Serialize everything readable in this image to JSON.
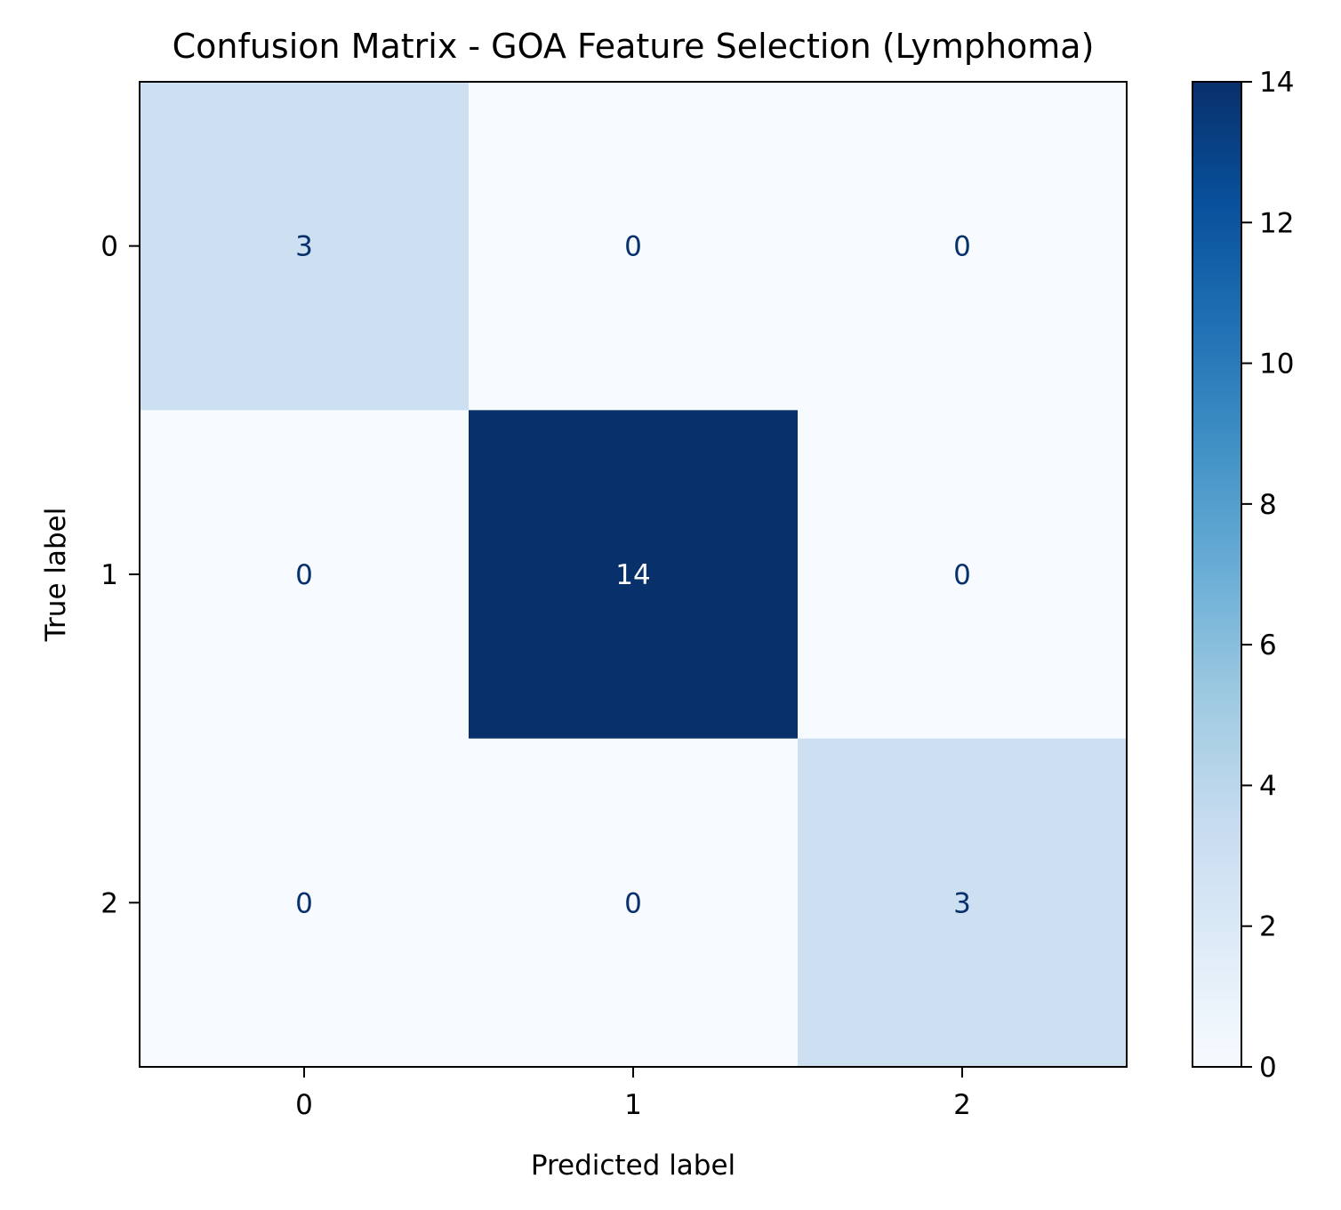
{
  "chart_data": {
    "type": "heatmap",
    "title": "Confusion Matrix - GOA Feature Selection (Lymphoma)",
    "xlabel": "Predicted label",
    "ylabel": "True label",
    "x_categories": [
      "0",
      "1",
      "2"
    ],
    "y_categories": [
      "0",
      "1",
      "2"
    ],
    "matrix": [
      [
        3,
        0,
        0
      ],
      [
        0,
        14,
        0
      ],
      [
        0,
        0,
        3
      ]
    ],
    "colormap": "Blues",
    "colorbar": {
      "range": [
        0,
        14
      ],
      "ticks": [
        0,
        2,
        4,
        6,
        8,
        10,
        12,
        14
      ],
      "tick_labels": [
        "0",
        "2",
        "4",
        "6",
        "8",
        "10",
        "12",
        "14"
      ]
    },
    "colors": {
      "low": "#f7fbff",
      "high": "#08306b",
      "text_dark": "#08306b",
      "text_light": "#ffffff"
    }
  }
}
